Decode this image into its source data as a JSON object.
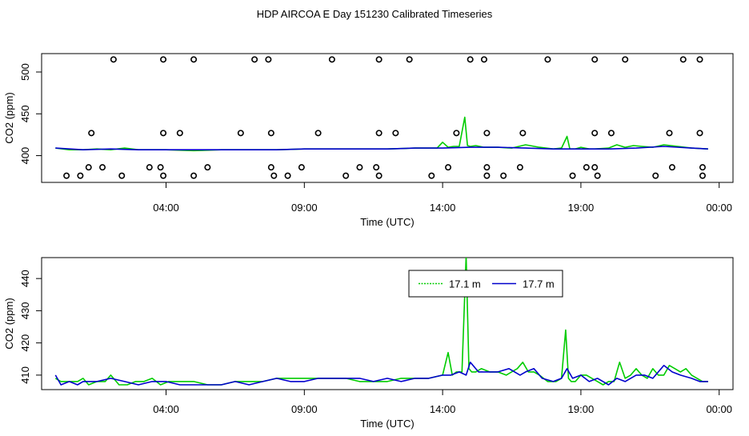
{
  "title": "HDP AIRCOA E  Day 151230  Calibrated Timeseries",
  "colors": {
    "series_17_1": "#00cc00",
    "series_17_7": "#0000cc",
    "markers": "#000000",
    "frame": "#000000",
    "background": "#ffffff"
  },
  "chart_data": [
    {
      "type": "line",
      "panel": "top",
      "xlabel": "Time (UTC)",
      "ylabel": "CO2 (ppm)",
      "x_unit": "hours (UTC) from 00:00 of day",
      "xlim": [
        -0.5,
        24.5
      ],
      "ylim": [
        368,
        522
      ],
      "x_tick_labels": [
        "04:00",
        "09:00",
        "14:00",
        "19:00",
        "00:00"
      ],
      "x_tick_hours": [
        4,
        9,
        14,
        19,
        24
      ],
      "y_ticks": [
        400,
        450,
        500
      ],
      "series": [
        {
          "color_key": "series_17_1",
          "x": [
            0,
            0.5,
            1,
            1.5,
            2,
            2.5,
            3,
            4,
            5,
            6,
            7,
            8,
            9,
            10,
            11,
            12,
            13,
            13.8,
            14,
            14.2,
            14.4,
            14.6,
            14.8,
            14.9,
            15.0,
            15.2,
            15.5,
            16,
            16.5,
            17,
            17.5,
            18,
            18.3,
            18.5,
            18.6,
            18.8,
            19,
            19.3,
            19.5,
            20,
            20.3,
            20.6,
            20.9,
            21.2,
            21.6,
            22,
            22.5,
            23,
            23.6
          ],
          "y": [
            409,
            407,
            407,
            408,
            407,
            409,
            407,
            407,
            406,
            407,
            407,
            407,
            408,
            408,
            408,
            408,
            409,
            409,
            416,
            410,
            411,
            411,
            446,
            412,
            411,
            412,
            410,
            410,
            409,
            413,
            410,
            408,
            409,
            423,
            408,
            408,
            410,
            408,
            408,
            409,
            413,
            410,
            412,
            411,
            410,
            413,
            411,
            409,
            408
          ]
        },
        {
          "color_key": "series_17_7",
          "x": [
            0,
            1,
            2,
            3,
            4,
            5,
            6,
            7,
            8,
            9,
            10,
            11,
            12,
            13,
            14,
            15,
            16,
            17,
            18,
            19,
            20,
            21,
            22,
            23,
            23.6
          ],
          "y": [
            409,
            407,
            408,
            407,
            407,
            407,
            407,
            407,
            407,
            408,
            408,
            408,
            408,
            409,
            409,
            410,
            410,
            409,
            408,
            408,
            408,
            409,
            411,
            409,
            408
          ]
        }
      ],
      "markers": {
        "x": [
          2.1,
          3.9,
          5.0,
          7.2,
          7.7,
          10.0,
          11.7,
          12.8,
          15.0,
          15.5,
          17.8,
          19.5,
          20.6,
          22.7,
          23.3,
          1.3,
          3.9,
          4.5,
          6.7,
          7.8,
          9.5,
          11.7,
          12.3,
          14.5,
          15.6,
          16.9,
          19.5,
          20.1,
          22.2,
          23.3,
          0.4,
          0.9,
          1.2,
          1.7,
          2.4,
          3.4,
          3.8,
          3.9,
          5.0,
          5.5,
          7.8,
          7.9,
          8.4,
          8.9,
          10.5,
          11.0,
          11.6,
          11.7,
          13.6,
          14.2,
          15.6,
          15.6,
          16.2,
          16.8,
          18.7,
          19.2,
          19.5,
          19.6,
          21.7,
          22.3,
          23.4,
          23.4
        ],
        "y": [
          515,
          515,
          515,
          515,
          515,
          515,
          515,
          515,
          515,
          515,
          515,
          515,
          515,
          515,
          515,
          427,
          427,
          427,
          427,
          427,
          427,
          427,
          427,
          427,
          427,
          427,
          427,
          427,
          427,
          427,
          376,
          376,
          386,
          386,
          376,
          386,
          386,
          376,
          376,
          386,
          386,
          376,
          376,
          386,
          376,
          386,
          386,
          376,
          376,
          386,
          386,
          376,
          376,
          386,
          376,
          386,
          386,
          376,
          376,
          386,
          386,
          376
        ]
      }
    },
    {
      "type": "line",
      "panel": "bottom",
      "xlabel": "Time (UTC)",
      "ylabel": "CO2 (ppm)",
      "x_unit": "hours (UTC) from 00:00 of day",
      "xlim": [
        -0.5,
        24.5
      ],
      "ylim": [
        405.5,
        446.5
      ],
      "x_tick_labels": [
        "04:00",
        "09:00",
        "14:00",
        "19:00",
        "00:00"
      ],
      "x_tick_hours": [
        4,
        9,
        14,
        19,
        24
      ],
      "y_ticks": [
        410,
        420,
        430,
        440
      ],
      "legend": {
        "placement": "top-center",
        "entries": [
          "17.1 m",
          "17.7 m"
        ]
      },
      "series": [
        {
          "name": "17.1 m",
          "color_key": "series_17_1",
          "x": [
            0,
            0.2,
            0.5,
            0.8,
            1.0,
            1.2,
            1.5,
            1.8,
            2.0,
            2.3,
            2.6,
            2.9,
            3.2,
            3.5,
            3.8,
            4.1,
            4.5,
            5.0,
            5.5,
            6.0,
            6.5,
            7.0,
            7.5,
            8.0,
            8.5,
            9.0,
            9.5,
            10.0,
            10.5,
            11.0,
            11.5,
            12.0,
            12.5,
            13.0,
            13.5,
            14.0,
            14.2,
            14.35,
            14.5,
            14.7,
            14.85,
            14.95,
            15.05,
            15.2,
            15.4,
            15.7,
            16.0,
            16.3,
            16.7,
            16.9,
            17.1,
            17.3,
            17.5,
            17.8,
            18.1,
            18.3,
            18.45,
            18.55,
            18.65,
            18.8,
            19.0,
            19.2,
            19.4,
            19.6,
            19.8,
            20.0,
            20.2,
            20.4,
            20.6,
            20.8,
            21.0,
            21.2,
            21.4,
            21.6,
            21.8,
            22.0,
            22.2,
            22.4,
            22.6,
            22.8,
            23.0,
            23.2,
            23.4,
            23.6
          ],
          "y": [
            409,
            408,
            408,
            408,
            409,
            407,
            408,
            408,
            410,
            407,
            407,
            408,
            408,
            409,
            407,
            408,
            408,
            408,
            407,
            407,
            408,
            408,
            408,
            409,
            409,
            409,
            409,
            409,
            409,
            408,
            408,
            408,
            409,
            409,
            409,
            410,
            417,
            410,
            411,
            411,
            447,
            412,
            411,
            411,
            412,
            411,
            411,
            410,
            412,
            414,
            411,
            411,
            410,
            408,
            408,
            409,
            424,
            409,
            408,
            408,
            410,
            410,
            409,
            408,
            407,
            408,
            408,
            414,
            409,
            410,
            412,
            410,
            409,
            412,
            410,
            410,
            413,
            412,
            411,
            412,
            410,
            409,
            408,
            408
          ]
        },
        {
          "name": "17.7 m",
          "color_key": "series_17_7",
          "x": [
            0,
            0.2,
            0.5,
            0.8,
            1.0,
            1.5,
            2.0,
            2.5,
            3.0,
            3.5,
            4.0,
            4.5,
            5.0,
            5.5,
            6.0,
            6.5,
            7.0,
            7.5,
            8.0,
            8.5,
            9.0,
            9.5,
            10.0,
            10.5,
            11.0,
            11.5,
            12.0,
            12.5,
            13.0,
            13.5,
            14.0,
            14.3,
            14.6,
            14.85,
            15.0,
            15.3,
            15.6,
            16.0,
            16.4,
            16.8,
            17.0,
            17.3,
            17.6,
            18.0,
            18.3,
            18.5,
            18.7,
            19.0,
            19.3,
            19.6,
            20.0,
            20.3,
            20.6,
            21.0,
            21.3,
            21.6,
            22.0,
            22.3,
            22.6,
            23.0,
            23.3,
            23.6
          ],
          "y": [
            410,
            407,
            408,
            407,
            408,
            408,
            409,
            408,
            407,
            408,
            408,
            407,
            407,
            407,
            407,
            408,
            407,
            408,
            409,
            408,
            408,
            409,
            409,
            409,
            409,
            408,
            409,
            408,
            409,
            409,
            410,
            410,
            411,
            410,
            414,
            411,
            411,
            411,
            412,
            410,
            411,
            412,
            409,
            408,
            409,
            412,
            409,
            410,
            408,
            409,
            407,
            409,
            408,
            410,
            410,
            409,
            413,
            411,
            410,
            409,
            408,
            408
          ]
        }
      ]
    }
  ]
}
